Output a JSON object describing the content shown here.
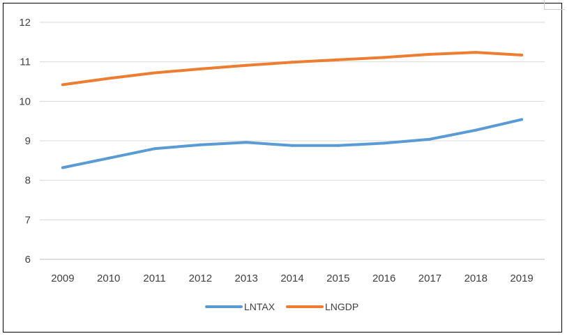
{
  "chart_data": {
    "type": "line",
    "title": "",
    "xlabel": "",
    "ylabel": "",
    "categories": [
      "2009",
      "2010",
      "2011",
      "2012",
      "2013",
      "2014",
      "2015",
      "2016",
      "2017",
      "2018",
      "2019"
    ],
    "ylim": [
      6,
      12
    ],
    "yticks": [
      "6",
      "7",
      "8",
      "9",
      "10",
      "11",
      "12"
    ],
    "grid": true,
    "legend_position": "bottom",
    "series": [
      {
        "name": "LNTAX",
        "color": "#5B9BD5",
        "values": [
          8.32,
          8.56,
          8.8,
          8.9,
          8.96,
          8.88,
          8.88,
          8.94,
          9.04,
          9.27,
          9.54
        ]
      },
      {
        "name": "LNGDP",
        "color": "#ED7D31",
        "values": [
          10.42,
          10.58,
          10.72,
          10.82,
          10.91,
          10.99,
          11.05,
          11.11,
          11.19,
          11.24,
          11.17
        ]
      }
    ]
  }
}
